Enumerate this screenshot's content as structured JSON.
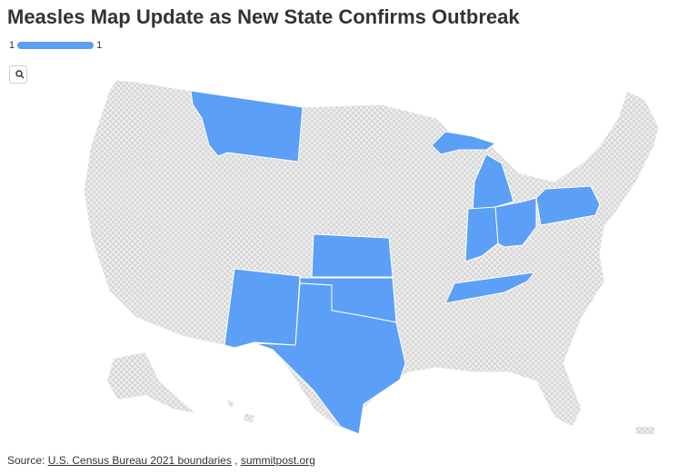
{
  "header": {
    "title": "Measles Map Update as New State Confirms Outbreak"
  },
  "legend": {
    "min": 1,
    "max": 1,
    "color": "#5b9ff6"
  },
  "source": {
    "label": "Source:",
    "links": [
      "U.S. Census Bureau 2021 boundaries",
      "summitpost.org"
    ],
    "separator": ","
  }
}
